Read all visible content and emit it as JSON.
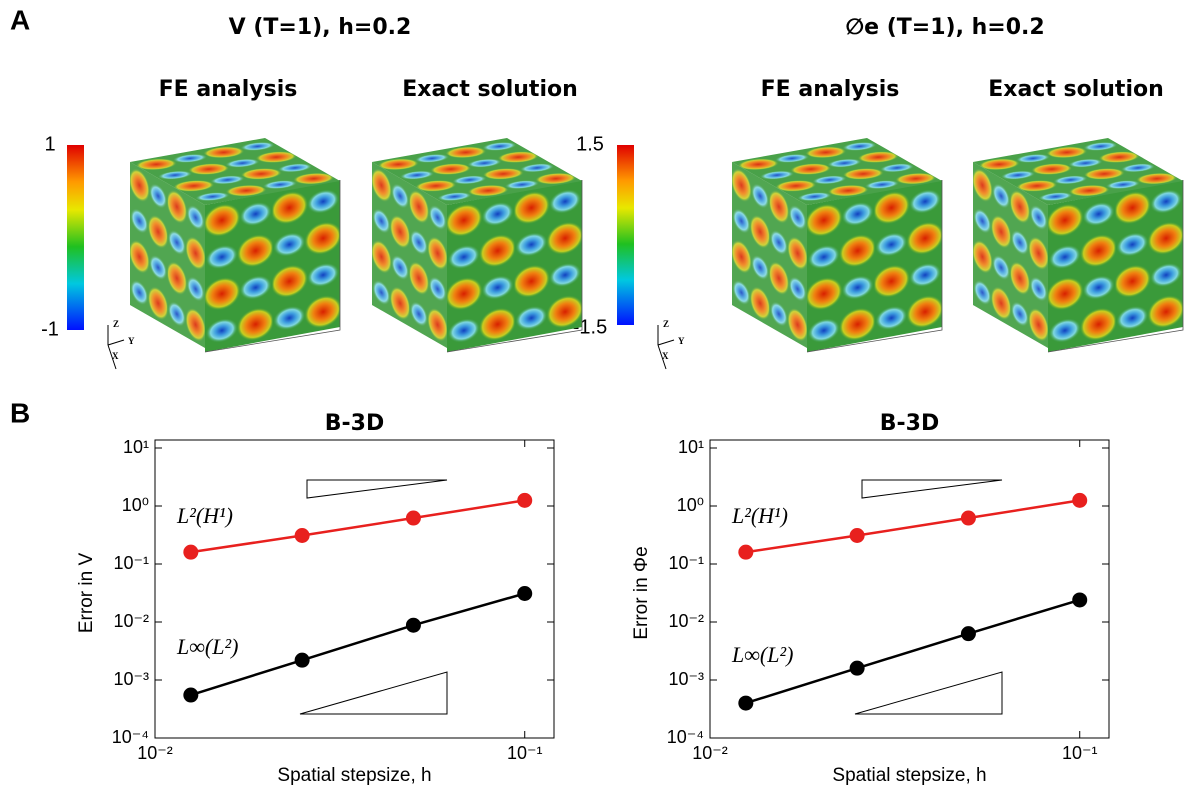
{
  "panel_a": {
    "label": "A",
    "left": {
      "title": "V (T=1), h=0.2",
      "fe_title": "FE analysis",
      "exact_title": "Exact solution",
      "colorbar": {
        "max": 1,
        "min": -1
      }
    },
    "right": {
      "title": "∅e (T=1), h=0.2",
      "fe_title": "FE analysis",
      "exact_title": "Exact solution",
      "colorbar": {
        "max": 1.5,
        "min": -1.5
      }
    },
    "axes": {
      "z": "Z",
      "y": "Y",
      "x": "X"
    }
  },
  "panel_b": {
    "label": "B"
  },
  "chart_data": [
    {
      "type": "line",
      "title": "B-3D",
      "x_label": "Spatial stepsize, h",
      "y_label": "Error in V",
      "log_x": true,
      "log_y": true,
      "x": [
        0.0125,
        0.025,
        0.05,
        0.1
      ],
      "series": [
        {
          "name": "L²(H¹)",
          "color": "#e8201e",
          "values": [
            0.16,
            0.31,
            0.62,
            1.25
          ]
        },
        {
          "name": "L∞(L²)",
          "color": "#000000",
          "values": [
            0.00055,
            0.0022,
            0.0088,
            0.031
          ]
        }
      ],
      "xlim": [
        0.01,
        0.12
      ],
      "xticks": [
        {
          "value": 0.01,
          "label": "10⁻²"
        },
        {
          "value": 0.1,
          "label": "10⁻¹"
        }
      ],
      "ylim": [
        0.0001,
        10
      ],
      "yticks": [
        {
          "value": 0.0001,
          "label": "10⁻⁴"
        },
        {
          "value": 0.001,
          "label": "10⁻³"
        },
        {
          "value": 0.01,
          "label": "10⁻²"
        },
        {
          "value": 0.1,
          "label": "10⁻¹"
        },
        {
          "value": 1,
          "label": "10⁰"
        },
        {
          "value": 10,
          "label": "10¹"
        }
      ]
    },
    {
      "type": "line",
      "title": "B-3D",
      "x_label": "Spatial stepsize, h",
      "y_label": "Error in Φe",
      "log_x": true,
      "log_y": true,
      "x": [
        0.0125,
        0.025,
        0.05,
        0.1
      ],
      "series": [
        {
          "name": "L²(H¹)",
          "color": "#e8201e",
          "values": [
            0.16,
            0.31,
            0.62,
            1.25
          ]
        },
        {
          "name": "L∞(L²)",
          "color": "#000000",
          "values": [
            0.0004,
            0.0016,
            0.0063,
            0.024
          ]
        }
      ],
      "xlim": [
        0.01,
        0.12
      ],
      "xticks": [
        {
          "value": 0.01,
          "label": "10⁻²"
        },
        {
          "value": 0.1,
          "label": "10⁻¹"
        }
      ],
      "ylim": [
        0.0001,
        10
      ],
      "yticks": [
        {
          "value": 0.0001,
          "label": "10⁻⁴"
        },
        {
          "value": 0.001,
          "label": "10⁻³"
        },
        {
          "value": 0.01,
          "label": "10⁻²"
        },
        {
          "value": 0.1,
          "label": "10⁻¹"
        },
        {
          "value": 1,
          "label": "10⁰"
        },
        {
          "value": 10,
          "label": "10¹"
        }
      ]
    }
  ]
}
